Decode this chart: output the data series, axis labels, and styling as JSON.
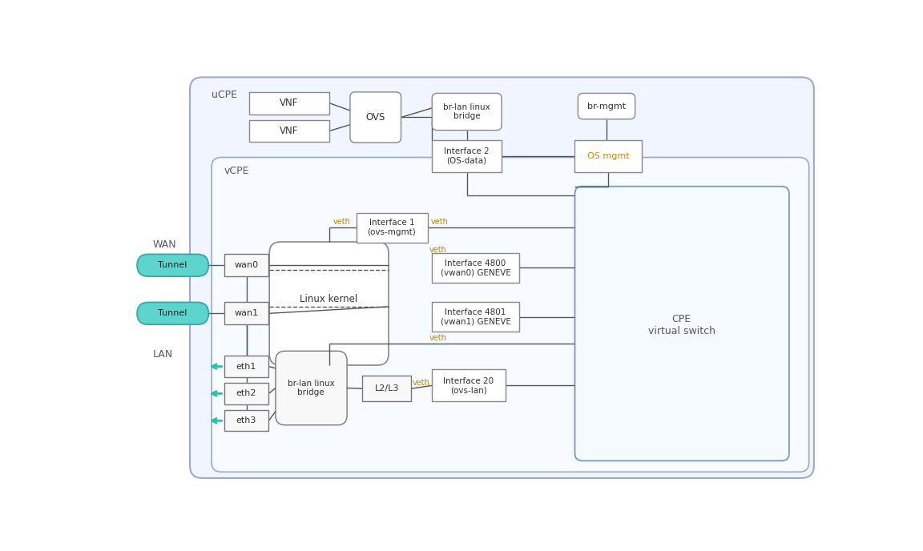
{
  "fig_w": 11.52,
  "fig_h": 6.88,
  "bg_color": "#ffffff",
  "box_ec": "#888888",
  "box_fc": "#ffffff",
  "ucpe_ec": "#99aacc",
  "ucpe_fc": "#f0f5ff",
  "vcpe_ec": "#99aacc",
  "vcpe_fc": "#f5f8ff",
  "cpe_ec": "#7799bb",
  "cpe_fc": "#f5f8ff",
  "tunnel_fc": "#5dd5cc",
  "tunnel_ec": "#33aaaa",
  "arrow_c": "#33bbaa",
  "line_c": "#555555",
  "veth_c": "#bb8800",
  "region_label_c": "#555577",
  "os_mgmt_c": "#cc8800",
  "text_c": "#333333",
  "labels": {
    "ucpe": "uCPE",
    "vcpe": "vCPE",
    "wan": "WAN",
    "lan": "LAN",
    "vnf1": "VNF",
    "vnf2": "VNF",
    "ovs": "OVS",
    "br_lan_top": "br-lan linux\nbridge",
    "br_mgmt": "br-mgmt",
    "iface2": "Interface 2\n(OS-data)",
    "os_mgmt": "OS mgmt",
    "iface1": "Interface 1\n(ovs-mgmt)",
    "linux_kernel": "Linux kernel",
    "iface4800": "Interface 4800\n(vwan0) GENEVE",
    "iface4801": "Interface 4801\n(vwan1) GENEVE",
    "cpe_vs": "CPE\nvirtual switch",
    "wan0": "wan0",
    "wan1": "wan1",
    "tunnel": "Tunnel",
    "eth1": "eth1",
    "eth2": "eth2",
    "eth3": "eth3",
    "br_lan_bot": "br-lan linux\nbridge",
    "l2l3": "L2/L3",
    "iface20": "Interface 20\n(ovs-lan)",
    "veth": "veth"
  }
}
